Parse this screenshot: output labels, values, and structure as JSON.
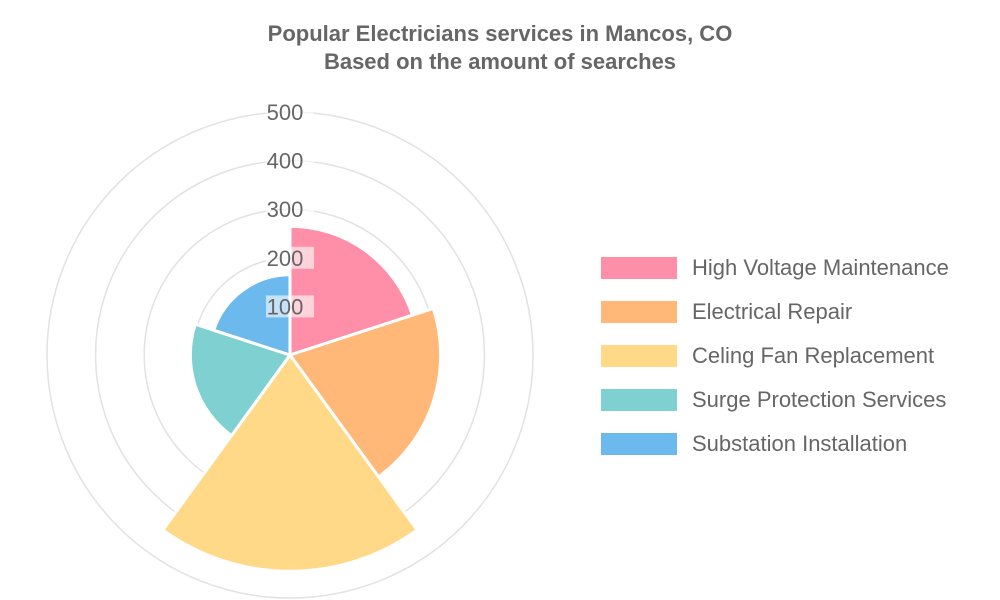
{
  "chart_data": {
    "type": "polarArea",
    "title": "Popular Electricians services in Mancos, CO",
    "subtitle": "Based on the amount of searches",
    "categories": [
      "High Voltage Maintenance",
      "Electrical Repair",
      "Celing Fan Replacement",
      "Surge Protection Services",
      "Substation Installation"
    ],
    "values": [
      265,
      310,
      445,
      205,
      165
    ],
    "colors": [
      "#ff8fa8",
      "#ffb877",
      "#ffd988",
      "#7fd1d1",
      "#6cb9ee"
    ],
    "r_ticks": [
      100,
      200,
      300,
      400,
      500
    ],
    "r_range": [
      0,
      500
    ],
    "grid": true,
    "legend": "right"
  }
}
